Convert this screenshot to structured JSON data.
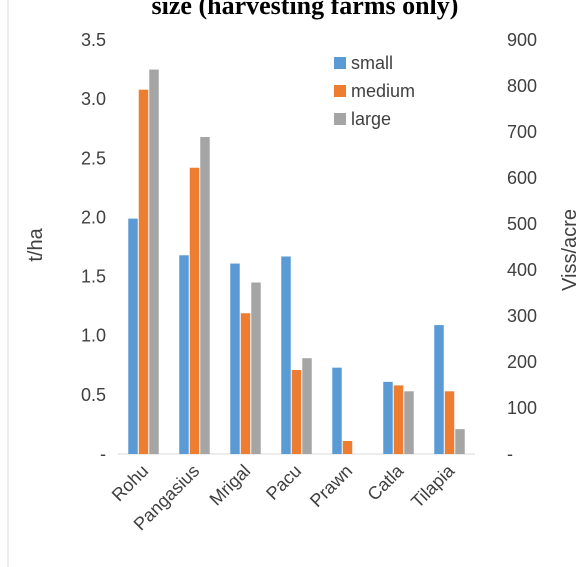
{
  "chart_data": {
    "type": "bar",
    "title": "size (harvesting farms only)",
    "ylabel": "t/ha",
    "y2label": "Viss/acre",
    "categories": [
      "Rohu",
      "Pangasius",
      "Mrigal",
      "Pacu",
      "Prawn",
      "Catla",
      "Tilapia"
    ],
    "series": [
      {
        "name": "small",
        "color": "#5b9bd5",
        "values": [
          1.99,
          1.68,
          1.61,
          1.67,
          0.73,
          0.61,
          1.09
        ]
      },
      {
        "name": "medium",
        "color": "#ed7d31",
        "values": [
          3.08,
          2.42,
          1.19,
          0.71,
          0.11,
          0.58,
          0.53
        ]
      },
      {
        "name": "large",
        "color": "#a5a5a5",
        "values": [
          3.25,
          2.68,
          1.45,
          0.81,
          null,
          0.53,
          0.21
        ]
      }
    ],
    "ylim": [
      0,
      3.5
    ],
    "y_ticks": [
      "-",
      "0.5",
      "1.0",
      "1.5",
      "2.0",
      "2.5",
      "3.0",
      "3.5"
    ],
    "y2lim": [
      0,
      900
    ],
    "y2_ticks": [
      "-",
      "100",
      "200",
      "300",
      "400",
      "500",
      "600",
      "700",
      "800",
      "900"
    ],
    "legend_position": "top-right",
    "grid": false
  }
}
